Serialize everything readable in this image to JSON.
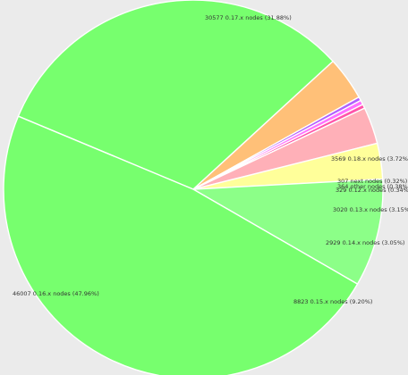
{
  "chart_data": {
    "type": "pie",
    "title": "",
    "slices": [
      {
        "label": "30577 0.17.x nodes (31.88%)",
        "value": 30577,
        "percent": 31.88,
        "color": "#77ff6e"
      },
      {
        "label": "3569 0.18.x nodes (3.72%)",
        "value": 3569,
        "percent": 3.72,
        "color": "#ffc078"
      },
      {
        "label": "307 next nodes (0.32%)",
        "value": 307,
        "percent": 0.32,
        "color": "#b060ff"
      },
      {
        "label": "364 other nodes (0.38%)",
        "value": 364,
        "percent": 0.38,
        "color": "#ff70ff"
      },
      {
        "label": "329 0.12.x nodes (0.34%)",
        "value": 329,
        "percent": 0.34,
        "color": "#ff55aa"
      },
      {
        "label": "3020 0.13.x nodes (3.15%)",
        "value": 3020,
        "percent": 3.15,
        "color": "#ffb0b8"
      },
      {
        "label": "2929 0.14.x nodes (3.05%)",
        "value": 2929,
        "percent": 3.05,
        "color": "#ffff9a"
      },
      {
        "label": "8823 0.15.x nodes (9.20%)",
        "value": 8823,
        "percent": 9.2,
        "color": "#8cff88"
      },
      {
        "label": "46007 0.16.x nodes (47.96%)",
        "value": 46007,
        "percent": 47.96,
        "color": "#77ff6e"
      }
    ]
  }
}
